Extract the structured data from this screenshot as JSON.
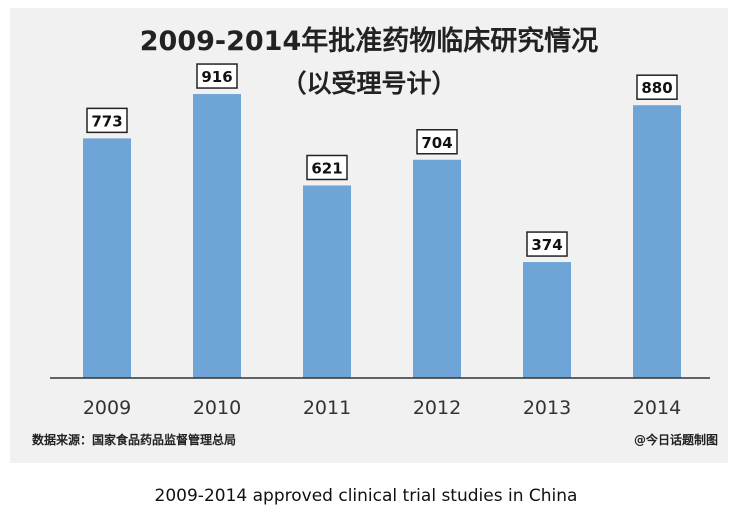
{
  "chart_data": {
    "type": "bar",
    "title": "2009-2014年批准药物临床研究情况",
    "subtitle": "（以受理号计）",
    "categories": [
      "2009",
      "2010",
      "2011",
      "2012",
      "2013",
      "2014"
    ],
    "values": [
      773,
      916,
      621,
      704,
      374,
      880
    ],
    "ylim": [
      0,
      1000
    ],
    "xlabel": "",
    "ylabel": "",
    "grid": false,
    "bar_color": "#6fa5d6",
    "source_note": "数据来源：国家食品药品监督管理总局",
    "watermark": "@今日话题制图"
  },
  "caption": "2009-2014 approved clinical trial studies in China"
}
